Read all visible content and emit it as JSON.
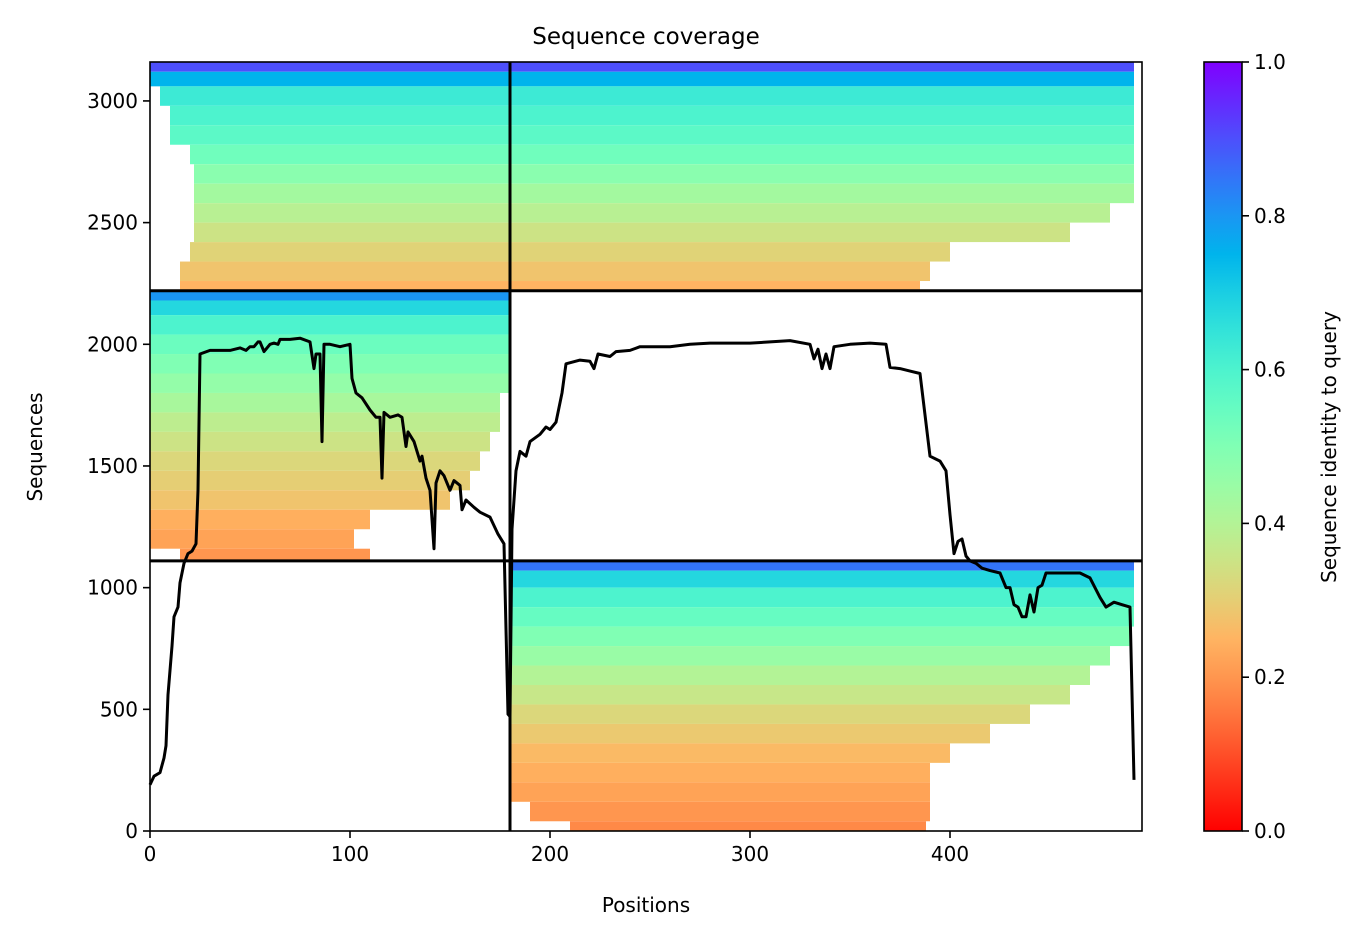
{
  "chart_data": {
    "type": "coverage",
    "title": "Sequence coverage",
    "xlabel": "Positions",
    "ylabel": "Sequences",
    "colorbar_label": "Sequence identity to query",
    "colormap": "rainbow_r",
    "xlim": [
      0,
      496
    ],
    "ylim": [
      0,
      3160
    ],
    "xticks": [
      0,
      100,
      200,
      300,
      400
    ],
    "yticks": [
      0,
      500,
      1000,
      1500,
      2000,
      2500,
      3000
    ],
    "clim": [
      0,
      1
    ],
    "cticks": [
      {
        "value": 0,
        "label": "0.0"
      },
      0.2,
      0.4,
      0.6,
      0.8,
      {
        "value": 1,
        "label": "1.0"
      }
    ],
    "boundaries": {
      "x": [
        180
      ],
      "y": [
        1110,
        2220
      ]
    },
    "rows": [
      [
        3120,
        3160,
        0,
        492,
        0.9
      ],
      [
        3060,
        3120,
        0,
        492,
        0.75
      ],
      [
        2980,
        3060,
        5,
        492,
        0.63
      ],
      [
        2900,
        2980,
        10,
        492,
        0.6
      ],
      [
        2820,
        2900,
        10,
        492,
        0.57
      ],
      [
        2740,
        2820,
        20,
        492,
        0.53
      ],
      [
        2660,
        2740,
        22,
        492,
        0.48
      ],
      [
        2580,
        2660,
        22,
        492,
        0.43
      ],
      [
        2500,
        2580,
        22,
        480,
        0.39
      ],
      [
        2420,
        2500,
        22,
        460,
        0.35
      ],
      [
        2340,
        2420,
        20,
        400,
        0.31
      ],
      [
        2260,
        2340,
        15,
        390,
        0.28
      ],
      [
        2220,
        2260,
        15,
        385,
        0.25
      ],
      [
        2180,
        2220,
        0,
        180,
        0.8
      ],
      [
        2120,
        2180,
        0,
        180,
        0.68
      ],
      [
        2040,
        2120,
        0,
        180,
        0.6
      ],
      [
        1960,
        2040,
        0,
        180,
        0.54
      ],
      [
        1880,
        1960,
        0,
        180,
        0.5
      ],
      [
        1800,
        1880,
        0,
        180,
        0.46
      ],
      [
        1720,
        1800,
        0,
        175,
        0.42
      ],
      [
        1640,
        1720,
        0,
        175,
        0.38
      ],
      [
        1560,
        1640,
        0,
        170,
        0.35
      ],
      [
        1480,
        1560,
        0,
        165,
        0.32
      ],
      [
        1400,
        1480,
        0,
        160,
        0.3
      ],
      [
        1320,
        1400,
        0,
        150,
        0.28
      ],
      [
        1240,
        1320,
        0,
        110,
        0.24
      ],
      [
        1160,
        1240,
        0,
        102,
        0.22
      ],
      [
        1110,
        1160,
        15,
        110,
        0.2
      ],
      [
        1070,
        1110,
        180,
        492,
        0.85
      ],
      [
        1000,
        1070,
        180,
        492,
        0.68
      ],
      [
        920,
        1000,
        180,
        492,
        0.6
      ],
      [
        840,
        920,
        180,
        492,
        0.55
      ],
      [
        760,
        840,
        180,
        490,
        0.5
      ],
      [
        680,
        760,
        180,
        480,
        0.45
      ],
      [
        600,
        680,
        180,
        470,
        0.4
      ],
      [
        520,
        600,
        180,
        460,
        0.36
      ],
      [
        440,
        520,
        180,
        440,
        0.32
      ],
      [
        360,
        440,
        180,
        420,
        0.29
      ],
      [
        280,
        360,
        180,
        400,
        0.26
      ],
      [
        200,
        280,
        180,
        390,
        0.24
      ],
      [
        120,
        200,
        180,
        390,
        0.22
      ],
      [
        40,
        120,
        190,
        390,
        0.2
      ],
      [
        0,
        40,
        210,
        388,
        0.18
      ]
    ],
    "coverage": {
      "x": [
        0,
        2,
        5,
        7,
        8,
        9,
        11,
        12,
        14,
        15,
        17,
        19,
        21,
        23,
        24,
        25,
        30,
        40,
        45,
        48,
        50,
        52,
        54,
        55,
        57,
        60,
        62,
        64,
        65,
        70,
        75,
        80,
        82,
        83,
        85,
        86,
        87,
        90,
        95,
        100,
        101,
        103,
        106,
        110,
        113,
        115,
        116,
        117,
        120,
        124,
        126,
        128,
        129,
        132,
        135,
        136,
        138,
        140,
        142,
        143,
        145,
        147,
        150,
        152,
        155,
        156,
        158,
        162,
        165,
        170,
        174,
        177,
        179,
        180,
        181,
        183,
        185,
        188,
        190,
        195,
        198,
        200,
        203,
        206,
        208,
        215,
        220,
        222,
        224,
        230,
        233,
        240,
        245,
        260,
        270,
        280,
        300,
        310,
        320,
        330,
        332,
        334,
        336,
        338,
        340,
        342,
        350,
        360,
        368,
        370,
        375,
        380,
        385,
        390,
        395,
        398,
        400,
        402,
        404,
        406,
        408,
        410,
        413,
        416,
        420,
        425,
        428,
        430,
        432,
        434,
        436,
        438,
        440,
        442,
        444,
        446,
        448,
        455,
        460,
        465,
        470,
        475,
        478,
        482,
        486,
        490,
        492
      ],
      "values": [
        190,
        225,
        240,
        300,
        350,
        560,
        760,
        880,
        920,
        1020,
        1100,
        1140,
        1150,
        1180,
        1400,
        1960,
        1975,
        1975,
        1985,
        1975,
        1990,
        1990,
        2010,
        2010,
        1970,
        2000,
        2005,
        2000,
        2020,
        2020,
        2025,
        2010,
        1900,
        1960,
        1960,
        1600,
        2000,
        2000,
        1990,
        2000,
        1860,
        1800,
        1780,
        1730,
        1700,
        1700,
        1450,
        1720,
        1700,
        1710,
        1700,
        1580,
        1640,
        1600,
        1520,
        1540,
        1450,
        1400,
        1160,
        1430,
        1480,
        1460,
        1400,
        1440,
        1420,
        1320,
        1360,
        1330,
        1310,
        1290,
        1220,
        1180,
        480,
        470,
        1240,
        1480,
        1560,
        1540,
        1600,
        1630,
        1660,
        1650,
        1680,
        1800,
        1920,
        1935,
        1930,
        1900,
        1960,
        1950,
        1970,
        1975,
        1990,
        1990,
        2000,
        2005,
        2005,
        2010,
        2015,
        2000,
        1940,
        1980,
        1900,
        1960,
        1900,
        1990,
        2000,
        2005,
        2000,
        1905,
        1900,
        1890,
        1880,
        1540,
        1520,
        1480,
        1300,
        1140,
        1190,
        1200,
        1130,
        1110,
        1100,
        1080,
        1070,
        1060,
        1000,
        1000,
        930,
        920,
        880,
        880,
        970,
        900,
        1000,
        1010,
        1060,
        1060,
        1060,
        1060,
        1040,
        960,
        920,
        940,
        930,
        920,
        210
      ],
      "color": "#000000"
    }
  }
}
